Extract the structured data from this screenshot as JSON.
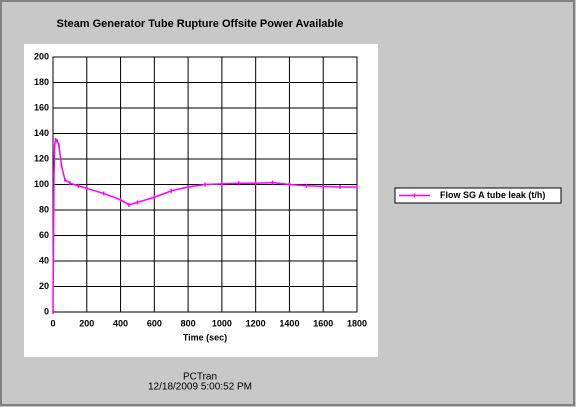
{
  "chart_data": {
    "type": "line",
    "title": "Steam Generator Tube Rupture Offsite Power Available",
    "x_label": "Time (sec)",
    "annotations": [
      "PCTran",
      "12/18/2009 5:00:52 PM"
    ],
    "x": [
      0,
      3,
      6,
      10,
      15,
      25,
      35,
      50,
      70,
      100,
      150,
      200,
      300,
      400,
      450,
      500,
      600,
      700,
      800,
      900,
      1000,
      1100,
      1200,
      1300,
      1400,
      1500,
      1600,
      1700,
      1800
    ],
    "series": [
      {
        "name": "Flow SG A tube leak (t/h)",
        "color": "#ff00ff",
        "values": [
          0,
          60,
          110,
          130,
          135,
          134,
          131,
          115,
          104,
          101,
          99,
          97,
          93,
          88,
          84,
          86,
          90,
          95,
          98,
          100,
          100.5,
          101,
          101,
          101.5,
          100,
          99,
          98.5,
          98,
          98
        ]
      }
    ],
    "xlim": [
      0,
      1800
    ],
    "xticks": [
      0,
      200,
      400,
      600,
      800,
      1000,
      1200,
      1400,
      1600,
      1800
    ],
    "ylim": [
      0,
      200
    ],
    "yticks": [
      0,
      20,
      40,
      60,
      80,
      100,
      120,
      140,
      160,
      180,
      200
    ],
    "grid": true,
    "legend": "right"
  }
}
